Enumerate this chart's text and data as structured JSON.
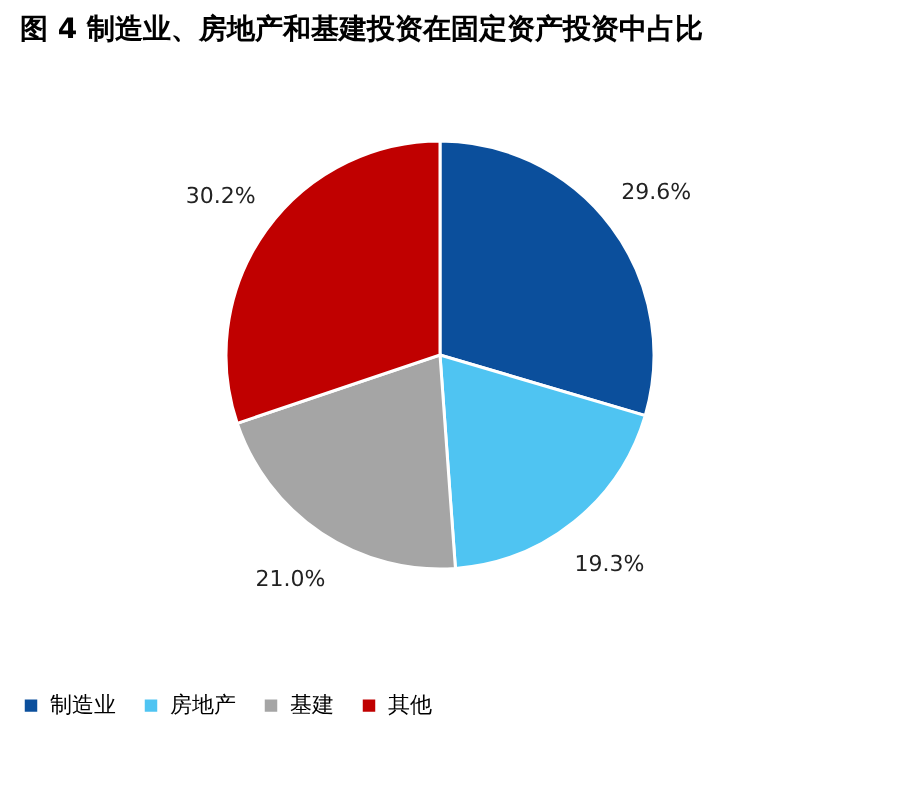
{
  "chart_data": {
    "type": "pie",
    "title": "图 4   制造业、房地产和基建投资在固定资产投资中占比",
    "categories": [
      "制造业",
      "房地产",
      "基建",
      "其他"
    ],
    "values": [
      29.6,
      19.3,
      21.0,
      30.2
    ],
    "colors": [
      "#0b4f9c",
      "#4fc4f2",
      "#a5a5a5",
      "#c00000"
    ],
    "value_labels": [
      "29.6%",
      "19.3%",
      "21.0%",
      "30.2%"
    ],
    "legend": "bottom"
  }
}
